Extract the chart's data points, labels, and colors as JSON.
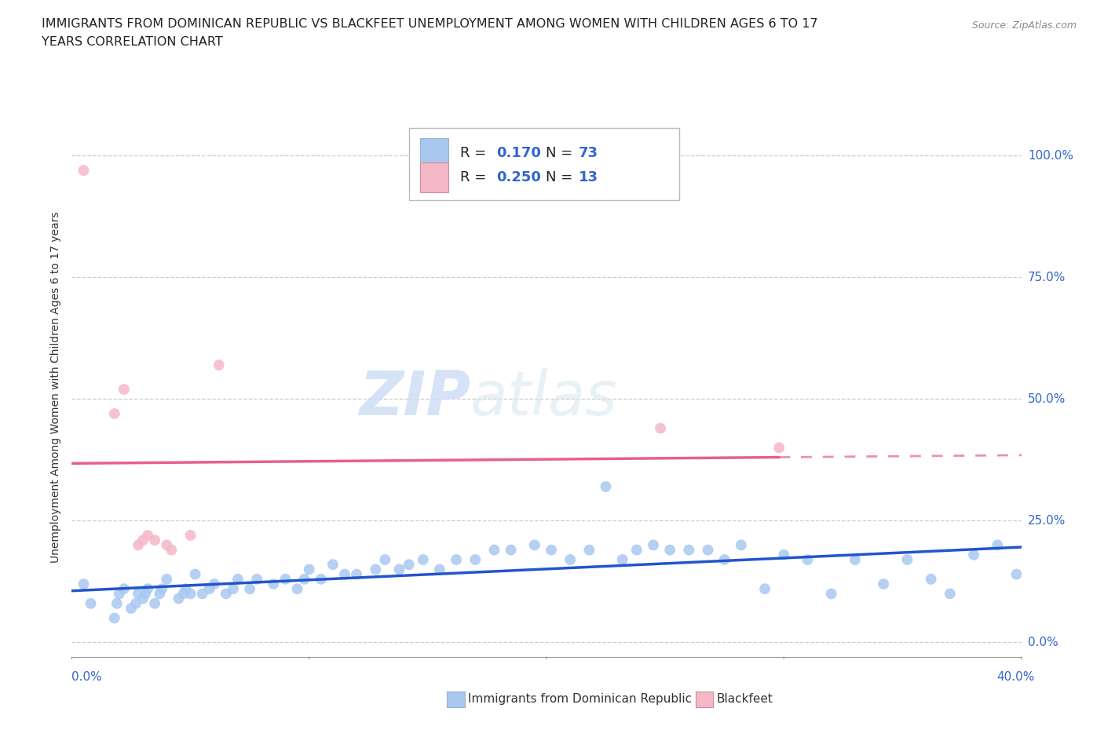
{
  "title_line1": "IMMIGRANTS FROM DOMINICAN REPUBLIC VS BLACKFEET UNEMPLOYMENT AMONG WOMEN WITH CHILDREN AGES 6 TO 17",
  "title_line2": "YEARS CORRELATION CHART",
  "source": "Source: ZipAtlas.com",
  "ylabel": "Unemployment Among Women with Children Ages 6 to 17 years",
  "ytick_labels": [
    "0.0%",
    "25.0%",
    "50.0%",
    "75.0%",
    "100.0%"
  ],
  "ytick_vals": [
    0.0,
    0.25,
    0.5,
    0.75,
    1.0
  ],
  "xtick_left_label": "0.0%",
  "xtick_right_label": "40.0%",
  "xlim": [
    0.0,
    0.4
  ],
  "ylim": [
    -0.03,
    1.08
  ],
  "blue_color": "#a8c8f0",
  "pink_color": "#f5b8c8",
  "blue_line_color": "#2255cc",
  "pink_line_color": "#e8608a",
  "accent_blue": "#3366cc",
  "legend_label_blue": "Immigrants from Dominican Republic",
  "legend_label_pink": "Blackfeet",
  "blue_r": "0.170",
  "blue_n": "73",
  "pink_r": "0.250",
  "pink_n": "13",
  "blue_scatter_x": [
    0.005,
    0.008,
    0.018,
    0.019,
    0.02,
    0.022,
    0.025,
    0.027,
    0.028,
    0.03,
    0.031,
    0.032,
    0.035,
    0.037,
    0.038,
    0.04,
    0.045,
    0.047,
    0.048,
    0.05,
    0.052,
    0.055,
    0.058,
    0.06,
    0.065,
    0.068,
    0.07,
    0.075,
    0.078,
    0.085,
    0.09,
    0.095,
    0.098,
    0.1,
    0.105,
    0.11,
    0.115,
    0.12,
    0.128,
    0.132,
    0.138,
    0.142,
    0.148,
    0.155,
    0.162,
    0.17,
    0.178,
    0.185,
    0.195,
    0.202,
    0.21,
    0.218,
    0.225,
    0.232,
    0.238,
    0.245,
    0.252,
    0.26,
    0.268,
    0.275,
    0.282,
    0.292,
    0.3,
    0.31,
    0.32,
    0.33,
    0.342,
    0.352,
    0.362,
    0.37,
    0.38,
    0.39,
    0.398
  ],
  "blue_scatter_y": [
    0.12,
    0.08,
    0.05,
    0.08,
    0.1,
    0.11,
    0.07,
    0.08,
    0.1,
    0.09,
    0.1,
    0.11,
    0.08,
    0.1,
    0.11,
    0.13,
    0.09,
    0.1,
    0.11,
    0.1,
    0.14,
    0.1,
    0.11,
    0.12,
    0.1,
    0.11,
    0.13,
    0.11,
    0.13,
    0.12,
    0.13,
    0.11,
    0.13,
    0.15,
    0.13,
    0.16,
    0.14,
    0.14,
    0.15,
    0.17,
    0.15,
    0.16,
    0.17,
    0.15,
    0.17,
    0.17,
    0.19,
    0.19,
    0.2,
    0.19,
    0.17,
    0.19,
    0.32,
    0.17,
    0.19,
    0.2,
    0.19,
    0.19,
    0.19,
    0.17,
    0.2,
    0.11,
    0.18,
    0.17,
    0.1,
    0.17,
    0.12,
    0.17,
    0.13,
    0.1,
    0.18,
    0.2,
    0.14
  ],
  "pink_scatter_x": [
    0.005,
    0.018,
    0.022,
    0.028,
    0.03,
    0.032,
    0.035,
    0.04,
    0.042,
    0.05,
    0.062,
    0.248,
    0.298
  ],
  "pink_scatter_y": [
    0.97,
    0.47,
    0.52,
    0.2,
    0.21,
    0.22,
    0.21,
    0.2,
    0.19,
    0.22,
    0.57,
    0.44,
    0.4
  ]
}
